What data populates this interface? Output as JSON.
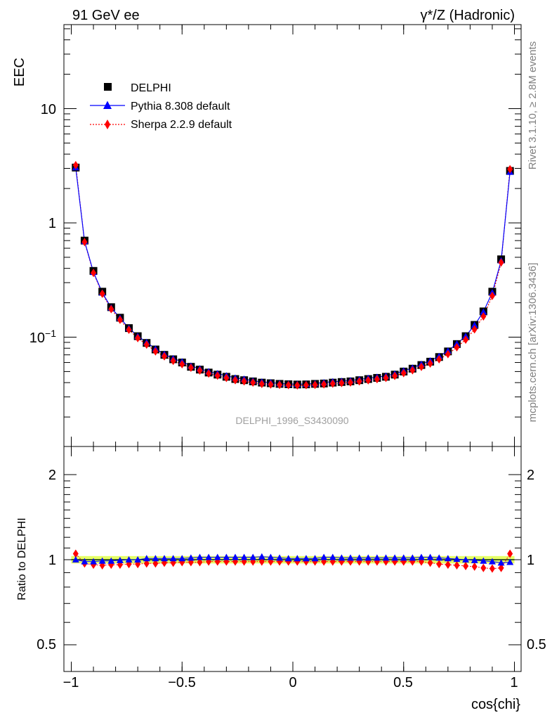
{
  "header": {
    "left": "91 GeV ee",
    "right": "γ*/Z (Hadronic)"
  },
  "side": {
    "rivet": "Rivet 3.1.10, ≥ 2.8M events",
    "mcplots": "mcplots.cern.ch [arXiv:1306.3436]"
  },
  "colors": {
    "data": "#000000",
    "pythia": "#0000ff",
    "sherpa": "#ff0000",
    "band": "#e6ff66",
    "watermark": "#a0a0a0",
    "sidetext": "#808080"
  },
  "chart_data": [
    {
      "type": "scatter",
      "panel": "main",
      "watermark": "DELPHI_1996_S3430090",
      "ylabel": "EEC",
      "yscale": "log",
      "xlim": [
        -1.05,
        1.05
      ],
      "ylim": [
        0.0115,
        80
      ],
      "ytick_labels": [
        "10",
        "1",
        "10−1"
      ],
      "legend_position": "top-left",
      "x": [
        -0.98,
        -0.94,
        -0.9,
        -0.86,
        -0.82,
        -0.78,
        -0.74,
        -0.7,
        -0.66,
        -0.62,
        -0.58,
        -0.54,
        -0.5,
        -0.46,
        -0.42,
        -0.38,
        -0.34,
        -0.3,
        -0.26,
        -0.22,
        -0.18,
        -0.14,
        -0.1,
        -0.06,
        -0.02,
        0.02,
        0.06,
        0.1,
        0.14,
        0.18,
        0.22,
        0.26,
        0.3,
        0.34,
        0.38,
        0.42,
        0.46,
        0.5,
        0.54,
        0.58,
        0.62,
        0.66,
        0.7,
        0.74,
        0.78,
        0.82,
        0.86,
        0.9,
        0.94,
        0.98
      ],
      "series": [
        {
          "name": "DELPHI",
          "marker": "square",
          "values": [
            3.05,
            0.7,
            0.38,
            0.25,
            0.183,
            0.148,
            0.12,
            0.102,
            0.089,
            0.078,
            0.07,
            0.064,
            0.06,
            0.055,
            0.052,
            0.049,
            0.047,
            0.045,
            0.043,
            0.042,
            0.041,
            0.04,
            0.0395,
            0.039,
            0.0387,
            0.0385,
            0.0386,
            0.039,
            0.0393,
            0.04,
            0.0405,
            0.041,
            0.042,
            0.043,
            0.044,
            0.045,
            0.047,
            0.05,
            0.053,
            0.057,
            0.061,
            0.067,
            0.075,
            0.087,
            0.102,
            0.128,
            0.168,
            0.25,
            0.48,
            2.85
          ]
        },
        {
          "name": "Pythia 8.308 default",
          "marker": "triangle",
          "values": [
            3.05,
            0.69,
            0.37,
            0.245,
            0.181,
            0.147,
            0.12,
            0.102,
            0.09,
            0.079,
            0.071,
            0.065,
            0.061,
            0.056,
            0.053,
            0.05,
            0.048,
            0.046,
            0.044,
            0.043,
            0.0415,
            0.0406,
            0.04,
            0.0393,
            0.039,
            0.0388,
            0.0389,
            0.0393,
            0.0401,
            0.0408,
            0.0412,
            0.0417,
            0.0426,
            0.0437,
            0.0447,
            0.0458,
            0.0478,
            0.0508,
            0.0538,
            0.0581,
            0.0622,
            0.068,
            0.0758,
            0.0875,
            0.102,
            0.1275,
            0.1665,
            0.246,
            0.468,
            2.79
          ]
        },
        {
          "name": "Sherpa 2.2.9 default",
          "marker": "diamond",
          "values": [
            3.2,
            0.68,
            0.365,
            0.24,
            0.176,
            0.142,
            0.116,
            0.098,
            0.086,
            0.075,
            0.068,
            0.062,
            0.058,
            0.054,
            0.051,
            0.048,
            0.046,
            0.044,
            0.042,
            0.041,
            0.04,
            0.039,
            0.0385,
            0.0382,
            0.038,
            0.0378,
            0.038,
            0.0382,
            0.0386,
            0.0392,
            0.0397,
            0.0401,
            0.041,
            0.0419,
            0.0429,
            0.044,
            0.0458,
            0.0485,
            0.0513,
            0.055,
            0.0588,
            0.064,
            0.071,
            0.0815,
            0.095,
            0.117,
            0.152,
            0.23,
            0.45,
            2.95
          ]
        }
      ]
    },
    {
      "type": "scatter",
      "panel": "ratio",
      "ylabel": "Ratio to DELPHI",
      "xlabel": "cos{chi}",
      "yscale": "log",
      "xlim": [
        -1.05,
        1.05
      ],
      "ylim": [
        0.4,
        2.5
      ],
      "ytick_labels": [
        "0.5",
        "1",
        "2"
      ],
      "xtick_labels": [
        "−1",
        "−0.5",
        "0",
        "0.5",
        "1"
      ],
      "uncertainty_band": [
        0.97,
        1.03
      ],
      "x": [
        -0.98,
        -0.94,
        -0.9,
        -0.86,
        -0.82,
        -0.78,
        -0.74,
        -0.7,
        -0.66,
        -0.62,
        -0.58,
        -0.54,
        -0.5,
        -0.46,
        -0.42,
        -0.38,
        -0.34,
        -0.3,
        -0.26,
        -0.22,
        -0.18,
        -0.14,
        -0.1,
        -0.06,
        -0.02,
        0.02,
        0.06,
        0.1,
        0.14,
        0.18,
        0.22,
        0.26,
        0.3,
        0.34,
        0.38,
        0.42,
        0.46,
        0.5,
        0.54,
        0.58,
        0.62,
        0.66,
        0.7,
        0.74,
        0.78,
        0.82,
        0.86,
        0.9,
        0.94,
        0.98
      ],
      "series": [
        {
          "name": "Pythia 8.308 default",
          "values": [
            1.0,
            0.985,
            0.985,
            0.99,
            0.99,
            0.995,
            1.0,
            1.0,
            1.01,
            1.01,
            1.01,
            1.01,
            1.01,
            1.015,
            1.02,
            1.02,
            1.02,
            1.02,
            1.02,
            1.02,
            1.02,
            1.025,
            1.02,
            1.015,
            1.01,
            1.01,
            1.01,
            1.01,
            1.02,
            1.02,
            1.015,
            1.015,
            1.015,
            1.015,
            1.015,
            1.015,
            1.015,
            1.015,
            1.015,
            1.02,
            1.02,
            1.015,
            1.01,
            1.005,
            1.0,
            0.995,
            0.99,
            0.985,
            0.975,
            0.98
          ]
        },
        {
          "name": "Sherpa 2.2.9 default",
          "values": [
            1.05,
            0.97,
            0.96,
            0.955,
            0.96,
            0.96,
            0.965,
            0.965,
            0.97,
            0.97,
            0.975,
            0.975,
            0.98,
            0.98,
            0.98,
            0.985,
            0.985,
            0.985,
            0.985,
            0.985,
            0.985,
            0.985,
            0.985,
            0.985,
            0.985,
            0.985,
            0.985,
            0.985,
            0.985,
            0.985,
            0.985,
            0.985,
            0.985,
            0.985,
            0.985,
            0.985,
            0.985,
            0.985,
            0.985,
            0.985,
            0.975,
            0.965,
            0.96,
            0.955,
            0.95,
            0.945,
            0.935,
            0.93,
            0.935,
            1.05
          ]
        }
      ]
    }
  ],
  "legend": [
    {
      "label": "DELPHI"
    },
    {
      "label": "Pythia 8.308 default"
    },
    {
      "label": "Sherpa 2.2.9 default"
    }
  ]
}
